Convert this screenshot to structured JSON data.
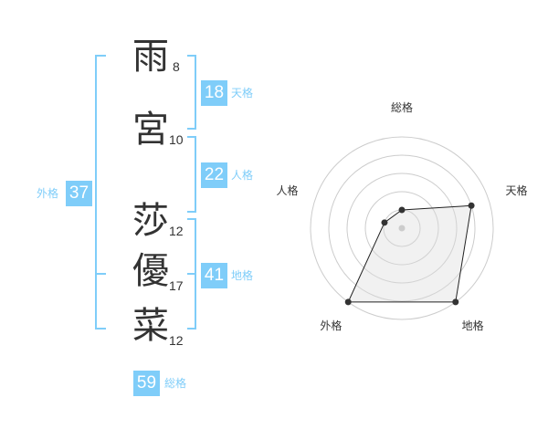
{
  "name": {
    "chars": [
      {
        "char": "雨",
        "strokes": "8"
      },
      {
        "char": "宮",
        "strokes": "10"
      },
      {
        "char": "莎",
        "strokes": "12"
      },
      {
        "char": "優",
        "strokes": "17"
      },
      {
        "char": "菜",
        "strokes": "12"
      }
    ]
  },
  "kaku": {
    "tenkaku": {
      "value": "18",
      "label": "天格"
    },
    "jinkaku": {
      "value": "22",
      "label": "人格"
    },
    "chikaku": {
      "value": "41",
      "label": "地格"
    },
    "gaikaku": {
      "value": "37",
      "label": "外格"
    },
    "soukaku": {
      "value": "59",
      "label": "総格"
    }
  },
  "accent_color": "#7fcdf9",
  "chart_data": {
    "type": "radar",
    "categories": [
      "総格",
      "天格",
      "地格",
      "外格",
      "人格"
    ],
    "values": [
      1,
      4,
      5,
      5,
      1
    ],
    "rlim": [
      0,
      5
    ],
    "grid": true
  }
}
